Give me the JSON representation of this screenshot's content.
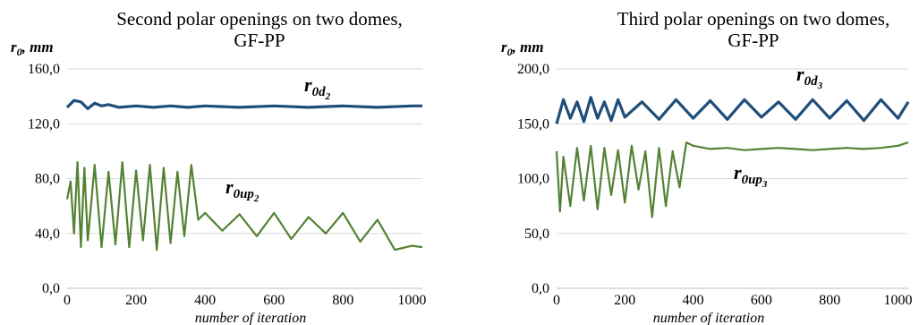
{
  "colors": {
    "blue": "#1f4e79",
    "green": "#548235",
    "grid": "#d9d9d9",
    "axis": "#bfbfbf"
  },
  "chart_data": [
    {
      "type": "line",
      "title_line1": "Second polar openings on two domes,",
      "title_line2": "GF-PP",
      "ylabel": "r",
      "ylabel_sub": "0",
      "ylabel_unit": ", mm",
      "xlabel": "number of iteration",
      "ylim": [
        0,
        160
      ],
      "xlim": [
        0,
        1030
      ],
      "yticks": [
        0,
        40,
        80,
        120,
        160
      ],
      "ytick_labels": [
        "0,0",
        "40,0",
        "80,0",
        "120,0",
        "160,0"
      ],
      "xticks": [
        0,
        200,
        400,
        600,
        800,
        1000
      ],
      "xtick_labels": [
        "0",
        "200",
        "400",
        "600",
        "800",
        "1000"
      ],
      "grid": "horizontal",
      "series": [
        {
          "name": "r0d2",
          "label_main": "r",
          "label_sub": "0d",
          "label_subsub": "2",
          "color": "#1f4e79",
          "x": [
            0,
            20,
            40,
            60,
            80,
            100,
            120,
            150,
            200,
            250,
            300,
            350,
            400,
            500,
            600,
            700,
            800,
            900,
            1000,
            1030
          ],
          "values": [
            132,
            137,
            136,
            131,
            135,
            133,
            134,
            132,
            133,
            132,
            133,
            132,
            133,
            132,
            133,
            132,
            133,
            132,
            133,
            133
          ]
        },
        {
          "name": "r0up2",
          "label_main": "r",
          "label_sub": "0up",
          "label_subsub": "2",
          "color": "#548235",
          "x": [
            0,
            10,
            20,
            30,
            40,
            50,
            60,
            80,
            100,
            120,
            140,
            160,
            180,
            200,
            220,
            240,
            260,
            280,
            300,
            320,
            340,
            360,
            380,
            400,
            450,
            500,
            550,
            600,
            650,
            700,
            750,
            800,
            850,
            900,
            950,
            1000,
            1030
          ],
          "values": [
            65,
            78,
            40,
            92,
            30,
            88,
            35,
            90,
            30,
            85,
            32,
            92,
            30,
            86,
            35,
            90,
            28,
            88,
            33,
            85,
            38,
            90,
            50,
            55,
            42,
            54,
            38,
            55,
            36,
            52,
            40,
            55,
            34,
            50,
            28,
            31,
            30
          ]
        }
      ]
    },
    {
      "type": "line",
      "title_line1": "Third polar openings on two domes,",
      "title_line2": "GF-PP",
      "ylabel": "r",
      "ylabel_sub": "0",
      "ylabel_unit": ", mm",
      "xlabel": "number of iteration",
      "ylim": [
        0,
        200
      ],
      "xlim": [
        0,
        1030
      ],
      "yticks": [
        0,
        50,
        100,
        150,
        200
      ],
      "ytick_labels": [
        "0,0",
        "50,0",
        "100,0",
        "150,0",
        "200,0"
      ],
      "xticks": [
        0,
        200,
        400,
        600,
        800,
        1000
      ],
      "xtick_labels": [
        "0",
        "200",
        "400",
        "600",
        "800",
        "1000"
      ],
      "grid": "horizontal",
      "series": [
        {
          "name": "r0d3",
          "label_main": "r",
          "label_sub": "0d",
          "label_subsub": "3",
          "color": "#1f4e79",
          "x": [
            0,
            20,
            40,
            60,
            80,
            100,
            120,
            140,
            160,
            180,
            200,
            250,
            300,
            350,
            400,
            450,
            500,
            550,
            600,
            650,
            700,
            750,
            800,
            850,
            900,
            950,
            1000,
            1030
          ],
          "values": [
            150,
            172,
            155,
            170,
            152,
            174,
            155,
            170,
            153,
            172,
            156,
            170,
            154,
            172,
            155,
            171,
            154,
            172,
            156,
            170,
            154,
            172,
            155,
            171,
            153,
            172,
            155,
            170
          ]
        },
        {
          "name": "r0up3",
          "label_main": "r",
          "label_sub": "0up",
          "label_subsub": "3",
          "color": "#548235",
          "x": [
            0,
            10,
            20,
            40,
            60,
            80,
            100,
            120,
            140,
            160,
            180,
            200,
            220,
            240,
            260,
            280,
            300,
            320,
            340,
            360,
            380,
            400,
            450,
            500,
            550,
            600,
            650,
            700,
            750,
            800,
            850,
            900,
            950,
            1000,
            1030
          ],
          "values": [
            125,
            70,
            120,
            75,
            128,
            80,
            130,
            72,
            128,
            85,
            126,
            78,
            130,
            90,
            125,
            65,
            128,
            75,
            125,
            92,
            133,
            130,
            127,
            128,
            126,
            127,
            128,
            127,
            126,
            127,
            128,
            127,
            128,
            130,
            133
          ]
        }
      ]
    }
  ]
}
